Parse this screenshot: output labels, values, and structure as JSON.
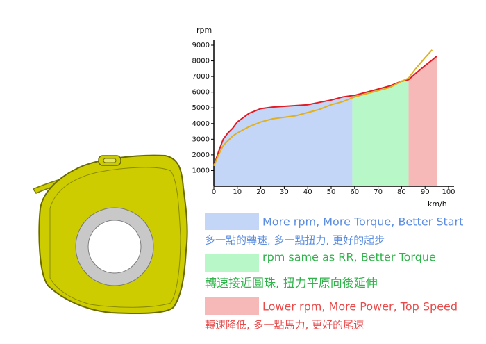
{
  "chart_data": {
    "type": "line",
    "y_label": "rpm",
    "x_label": "km/h",
    "xlim": [
      0,
      100
    ],
    "ylim": [
      0,
      9000
    ],
    "xticks": [
      0,
      10,
      20,
      30,
      40,
      50,
      60,
      70,
      80,
      90,
      100
    ],
    "yticks": [
      1000,
      2000,
      3000,
      4000,
      5000,
      6000,
      7000,
      8000,
      9000
    ],
    "x": [
      0,
      2,
      4,
      6,
      8,
      10,
      15,
      20,
      25,
      30,
      35,
      40,
      45,
      50,
      55,
      60,
      65,
      70,
      75,
      80,
      83,
      86,
      90,
      93,
      95
    ],
    "series": [
      {
        "color": "#e01b24",
        "values": [
          1300,
          2200,
          3000,
          3400,
          3700,
          4100,
          4650,
          4950,
          5050,
          5100,
          5150,
          5200,
          5350,
          5500,
          5700,
          5800,
          6000,
          6200,
          6400,
          6700,
          6800,
          7200,
          7700,
          8050,
          8300
        ]
      },
      {
        "color": "#e0b020",
        "values": [
          1300,
          2000,
          2600,
          2900,
          3200,
          3400,
          3800,
          4100,
          4300,
          4400,
          4500,
          4700,
          4900,
          5200,
          5400,
          5700,
          5900,
          6100,
          6300,
          6700,
          6900,
          7500,
          8200,
          8700,
          null
        ]
      }
    ],
    "regions": [
      {
        "x0": 0,
        "x1": 59,
        "color": "#c4d6f7"
      },
      {
        "x0": 59,
        "x1": 83,
        "color": "#b8f7c8"
      },
      {
        "x0": 83,
        "x1": 95,
        "color": "#f7b8b8"
      }
    ],
    "notes": [
      {
        "title": "More rpm, More Torque, Better Start",
        "subtitle": "多一點的轉速, 多一點扭力, 更好的起步",
        "color": "#5b8de0"
      },
      {
        "title": "rpm same as RR, Better Torque",
        "subtitle": "轉速接近圓珠, 扭力平原向後延伸",
        "color": "#2fb34a"
      },
      {
        "title": "Lower rpm, More Power, Top Speed",
        "subtitle": "轉速降低, 多一點馬力, 更好的尾速",
        "color": "#e84a4a"
      }
    ]
  }
}
